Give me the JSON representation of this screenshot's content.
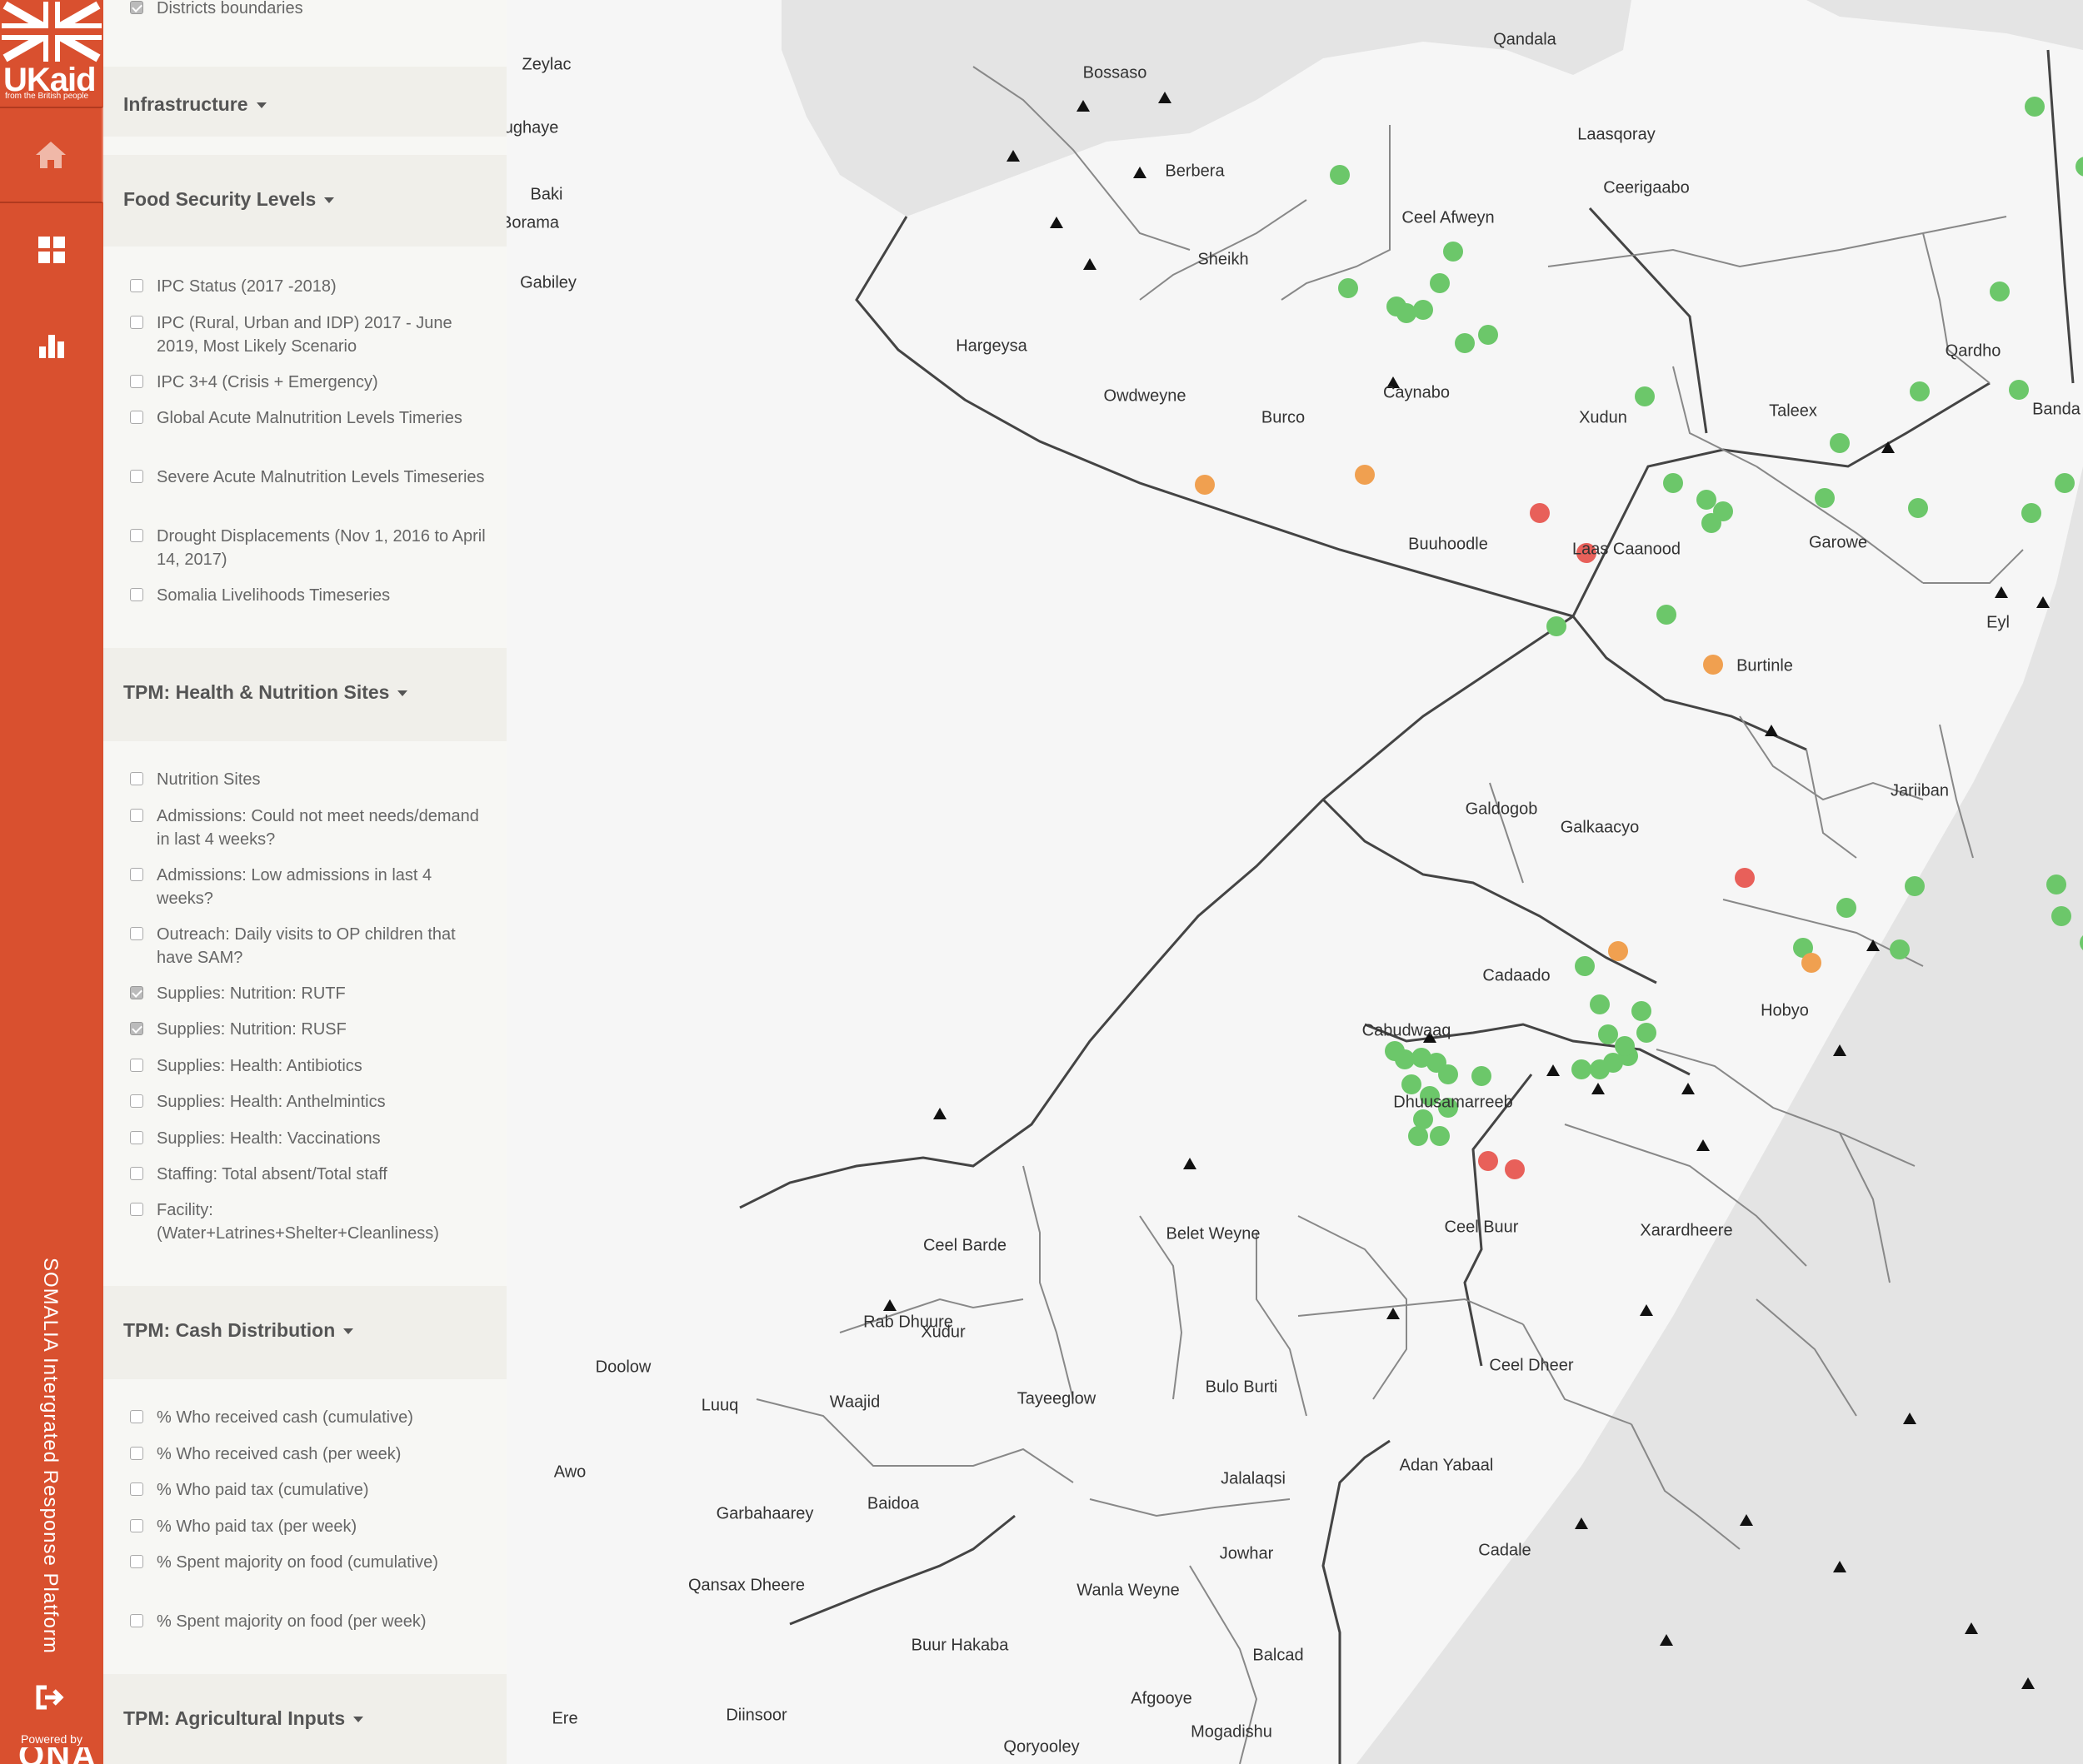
{
  "branding": {
    "logo_text": "UKaid",
    "logo_tagline": "from the British people",
    "rail_title": "SOMALIA   Intergrated Response Platform",
    "powered_by": "Powered by",
    "powered_logo": "ONA"
  },
  "nav": [
    {
      "name": "home",
      "icon": "home-icon"
    },
    {
      "name": "dashboard",
      "icon": "grid-icon"
    },
    {
      "name": "charts",
      "icon": "bar-chart-icon"
    },
    {
      "name": "logout",
      "icon": "logout-icon"
    }
  ],
  "panel": {
    "top_item": {
      "label": "Districts boundaries",
      "checked": true
    },
    "sections": [
      {
        "title": "Infrastructure",
        "options": []
      },
      {
        "title": "Food Security Levels",
        "options": [
          {
            "label": "IPC Status (2017 -2018)",
            "checked": false
          },
          {
            "label": "IPC (Rural, Urban and IDP) 2017 - June 2019, Most Likely Scenario",
            "checked": false
          },
          {
            "label": "IPC 3+4 (Crisis + Emergency)",
            "checked": false
          },
          {
            "label": "Global Acute Malnutrition Levels Timeries",
            "checked": false
          },
          {
            "label": "Severe Acute Malnutrition Levels Timeseries",
            "checked": false
          },
          {
            "label": "Drought Displacements (Nov 1, 2016 to April 14, 2017)",
            "checked": false
          },
          {
            "label": "Somalia Livelihoods Timeseries",
            "checked": false
          }
        ]
      },
      {
        "title": "TPM: Health & Nutrition Sites",
        "options": [
          {
            "label": "Nutrition Sites",
            "checked": false
          },
          {
            "label": "Admissions: Could not meet needs/demand in last 4 weeks?",
            "checked": false
          },
          {
            "label": "Admissions: Low admissions in last 4 weeks?",
            "checked": false
          },
          {
            "label": "Outreach: Daily visits to OP children that have SAM?",
            "checked": false
          },
          {
            "label": "Supplies: Nutrition: RUTF",
            "checked": true
          },
          {
            "label": "Supplies: Nutrition: RUSF",
            "checked": true
          },
          {
            "label": "Supplies: Health: Antibiotics",
            "checked": false
          },
          {
            "label": "Supplies: Health: Anthelmintics",
            "checked": false
          },
          {
            "label": "Supplies: Health: Vaccinations",
            "checked": false
          },
          {
            "label": "Staffing: Total absent/Total staff",
            "checked": false
          },
          {
            "label": "Facility: (Water+Latrines+Shelter+Cleanliness)",
            "checked": false
          }
        ]
      },
      {
        "title": "TPM: Cash Distribution",
        "options": [
          {
            "label": "% Who received cash (cumulative)",
            "checked": false
          },
          {
            "label": "% Who received cash (per week)",
            "checked": false
          },
          {
            "label": "% Who paid tax (cumulative)",
            "checked": false
          },
          {
            "label": "% Who paid tax (per week)",
            "checked": false
          },
          {
            "label": "% Spent majority on food (cumulative)",
            "checked": false
          },
          {
            "label": "% Spent majority on food (per week)",
            "checked": false
          }
        ]
      },
      {
        "title": "TPM: Agricultural Inputs",
        "options": []
      }
    ]
  },
  "map": {
    "colors": {
      "green": "#6cc76a",
      "orange": "#f0a050",
      "red": "#e8605a",
      "land": "#f6f6f6",
      "water": "#e2e2e2"
    },
    "place_labels": [
      "Qandala",
      "Bossaso",
      "Zeylac",
      "Lughaye",
      "Baki",
      "Borama",
      "Gabiley",
      "Berbera",
      "Sheikh",
      "Ceel Afweyn",
      "Laasqoray",
      "Ceerigaabo",
      "Qardho",
      "Banda",
      "Hargeysa",
      "Owdweyne",
      "Burco",
      "Caynabo",
      "Xudun",
      "Taleex",
      "Buuhoodle",
      "Laas Caanood",
      "Garowe",
      "Eyl",
      "Burtinle",
      "Jariiban",
      "Galdogob",
      "Galkaacyo",
      "Cadaado",
      "Hobyo",
      "Cabudwaaq",
      "Dhuusamarreeb",
      "Belet Weyne",
      "Ceel Buur",
      "Xarardheere",
      "Ceel Barde",
      "Rab Dhuure",
      "Xudur",
      "Doolow",
      "Luuq",
      "Waajid",
      "Tayeeglow",
      "Bulo Burti",
      "Ceel Dheer",
      "Awo",
      "Garbahaarey",
      "Baidoa",
      "Jalalaqsi",
      "Adan Yabaal",
      "Jowhar",
      "Cadale",
      "Qansax Dheere",
      "Wanla Weyne",
      "Buur Hakaba",
      "Balcad",
      "Afgooye",
      "Mogadishu",
      "Diinsoor",
      "Qoryooley",
      "Ere"
    ]
  }
}
